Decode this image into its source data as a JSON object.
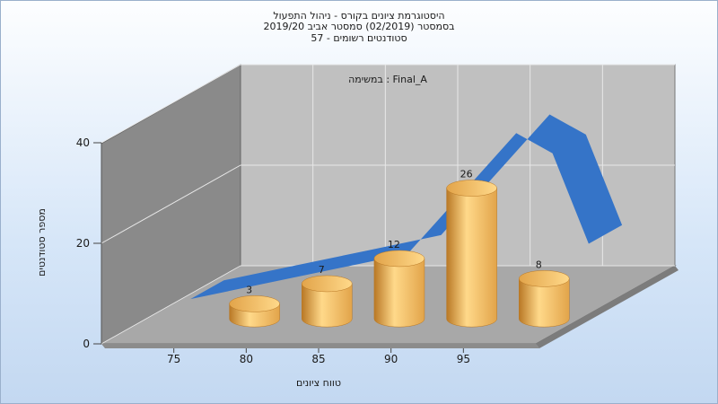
{
  "chart_data": {
    "type": "bar",
    "title_lines": [
      "היסטוגרמת ציונים בקורס - ניהול התפעול",
      "בסמסטר  (02/2019)  סמסטר אביב 2019/20",
      "סטודנטים רשומים - 57"
    ],
    "annotation": "במשימה : Final_A",
    "xlabel": "טווח ציונים",
    "ylabel": "מספר סטודנטים",
    "x_ticks": [
      "75",
      "80",
      "85",
      "90",
      "95"
    ],
    "y_ticks": [
      "0",
      "20",
      "40"
    ],
    "ylim": [
      0,
      40
    ],
    "xlim": [
      70,
      100
    ],
    "grid": true,
    "legend": "none",
    "bars": [
      {
        "x": 77.5,
        "value": 3,
        "label": "3"
      },
      {
        "x": 82.5,
        "value": 7,
        "label": "7"
      },
      {
        "x": 87.5,
        "value": 12,
        "label": "12"
      },
      {
        "x": 92.5,
        "value": 26,
        "label": "26"
      },
      {
        "x": 97.5,
        "value": 8,
        "label": "8"
      }
    ],
    "curve": {
      "type": "line",
      "x": [
        72.5,
        77.5,
        82.5,
        87.5,
        90,
        92.5,
        95,
        97.5,
        100
      ],
      "y": [
        3,
        6,
        9,
        12,
        20,
        28,
        36,
        32,
        14
      ]
    },
    "colors": {
      "bar_light": "#ffd98a",
      "bar_mid": "#e2a44a",
      "bar_dark": "#b97825",
      "curve": "#3574c8",
      "back_wall": "#c0c0c0",
      "side_wall": "#8a8a8a",
      "floor": "#a8a8a8"
    }
  }
}
